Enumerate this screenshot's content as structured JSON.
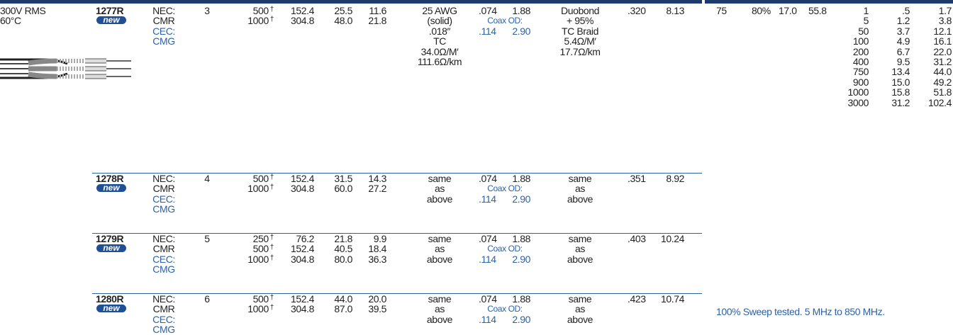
{
  "voltage": "300V RMS",
  "temperature": "60°C",
  "dagger": "†",
  "rows": [
    {
      "part": "1277R",
      "badge": "new",
      "ratings": [
        "NEC:",
        "CMR",
        "CEC:",
        "CMG"
      ],
      "conductors": "3",
      "length_ft": [
        "500",
        "1000"
      ],
      "length_m": [
        "152.4",
        "304.8"
      ],
      "weight_lbs": [
        "25.5",
        "48.0"
      ],
      "weight_kg": [
        "11.6",
        "21.8"
      ],
      "conductor": [
        "25 AWG",
        "(solid)",
        ".018″",
        "TC",
        "34.0Ω/M′",
        "111.6Ω/km"
      ],
      "insulation": {
        "in": ".074",
        "mm": "1.88",
        "label": "Coax OD:",
        "od_in": ".114",
        "od_mm": "2.90"
      },
      "shield": [
        "Duobond",
        "+ 95%",
        "TC Braid",
        "5.4Ω/M′",
        "17.7Ω/km"
      ],
      "od_in": ".320",
      "od_mm": "8.13"
    },
    {
      "part": "1278R",
      "badge": "new",
      "ratings": [
        "NEC:",
        "CMR",
        "CEC:",
        "CMG"
      ],
      "conductors": "4",
      "length_ft": [
        "500",
        "1000"
      ],
      "length_m": [
        "152.4",
        "304.8"
      ],
      "weight_lbs": [
        "31.5",
        "60.0"
      ],
      "weight_kg": [
        "14.3",
        "27.2"
      ],
      "conductor": [
        "same",
        "as",
        "above"
      ],
      "insulation": {
        "in": ".074",
        "mm": "1.88",
        "label": "Coax OD:",
        "od_in": ".114",
        "od_mm": "2.90"
      },
      "shield": [
        "same",
        "as",
        "above"
      ],
      "od_in": ".351",
      "od_mm": "8.92"
    },
    {
      "part": "1279R",
      "badge": "new",
      "ratings": [
        "NEC:",
        "CMR",
        "CEC:",
        "CMG"
      ],
      "conductors": "5",
      "length_ft": [
        "250",
        "500",
        "1000"
      ],
      "length_m": [
        "76.2",
        "152.4",
        "304.8"
      ],
      "weight_lbs": [
        "21.8",
        "40.5",
        "80.0"
      ],
      "weight_kg": [
        "9.9",
        "18.4",
        "36.3"
      ],
      "conductor": [
        "same",
        "as",
        "above"
      ],
      "insulation": {
        "in": ".074",
        "mm": "1.88",
        "label": "Coax OD:",
        "od_in": ".114",
        "od_mm": "2.90"
      },
      "shield": [
        "same",
        "as",
        "above"
      ],
      "od_in": ".403",
      "od_mm": "10.24"
    },
    {
      "part": "1280R",
      "badge": "new",
      "ratings": [
        "NEC:",
        "CMR",
        "CEC:",
        "CMG"
      ],
      "conductors": "6",
      "length_ft": [
        "500",
        "1000"
      ],
      "length_m": [
        "152.4",
        "304.8"
      ],
      "weight_lbs": [
        "44.0",
        "87.0"
      ],
      "weight_kg": [
        "20.0",
        "39.5"
      ],
      "conductor": [
        "same",
        "as",
        "above"
      ],
      "insulation": {
        "in": ".074",
        "mm": "1.88",
        "label": "Coax OD:",
        "od_in": ".114",
        "od_mm": "2.90"
      },
      "shield": [
        "same",
        "as",
        "above"
      ],
      "od_in": ".423",
      "od_mm": "10.74"
    }
  ],
  "electrical": {
    "impedance": "75",
    "velocity": "80%",
    "cap_ft": "17.0",
    "cap_m": "55.8"
  },
  "attenuation": {
    "mhz": [
      "1",
      "5",
      "50",
      "100",
      "200",
      "400",
      "750",
      "900",
      "1000",
      "3000"
    ],
    "db_100ft": [
      ".5",
      "1.2",
      "3.7",
      "4.9",
      "6.7",
      "9.5",
      "13.4",
      "15.0",
      "15.8",
      "31.2"
    ],
    "db_100m": [
      "1.7",
      "3.8",
      "12.1",
      "16.1",
      "22.0",
      "31.2",
      "44.0",
      "49.2",
      "51.8",
      "102.4"
    ]
  },
  "note": "100% Sweep tested. 5 MHz to 850 MHz."
}
